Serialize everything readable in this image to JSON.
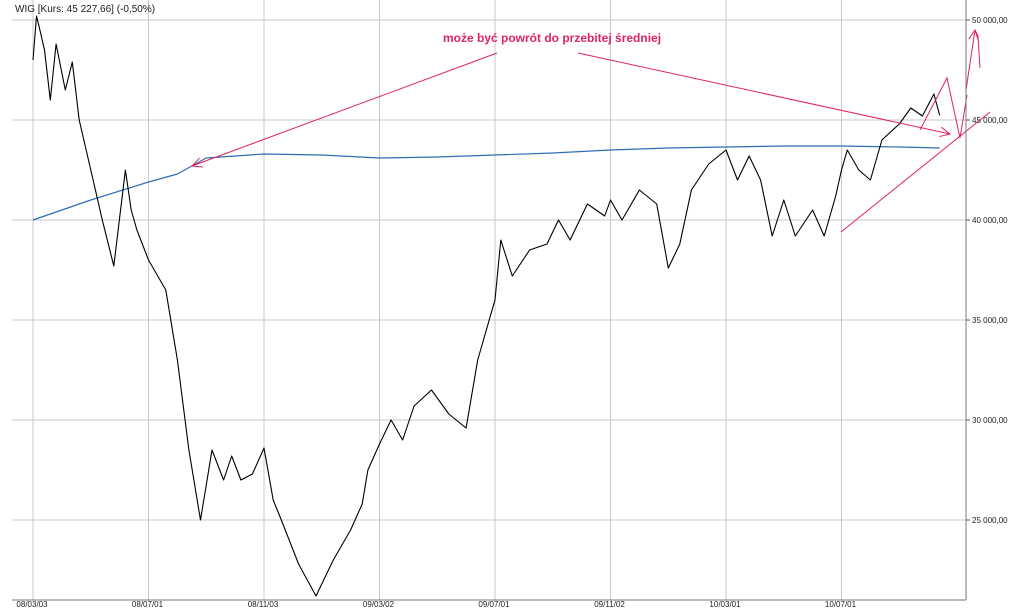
{
  "chart_data": {
    "type": "line",
    "legend": "WIG [Kurs: 45 227,66] (-0,50%)",
    "annotation": "może być powrót do przebitej średniej",
    "ylim": [
      21000,
      51000
    ],
    "y_ticks": [
      {
        "value": 25000,
        "label": "25 000,00"
      },
      {
        "value": 30000,
        "label": "30 000,00"
      },
      {
        "value": 35000,
        "label": "35 000,00"
      },
      {
        "value": 40000,
        "label": "40 000,00"
      },
      {
        "value": 45000,
        "label": "45 000,00"
      },
      {
        "value": 50000,
        "label": "50 000,00"
      }
    ],
    "x_ticks": [
      "08/03/03",
      "08/07/01",
      "08/11/03",
      "09/03/02",
      "09/07/01",
      "09/11/02",
      "10/03/01",
      "10/07/01"
    ],
    "grid": true,
    "series": [
      {
        "name": "WIG",
        "color": "#000000",
        "x": [
          0.0,
          0.03,
          0.06,
          0.1,
          0.15,
          0.2,
          0.28,
          0.34,
          0.4,
          0.5,
          0.6,
          0.7,
          0.8,
          0.85,
          0.9,
          1.0,
          1.15,
          1.25,
          1.35,
          1.45,
          1.55,
          1.65,
          1.72,
          1.8,
          1.9,
          2.0,
          2.08,
          2.15,
          2.3,
          2.45,
          2.6,
          2.75,
          2.85,
          2.9,
          3.0,
          3.1,
          3.2,
          3.3,
          3.45,
          3.6,
          3.75,
          3.85,
          3.95,
          4.0,
          4.05,
          4.15,
          4.3,
          4.45,
          4.55,
          4.65,
          4.8,
          4.95,
          5.0,
          5.1,
          5.25,
          5.4,
          5.5,
          5.6,
          5.7,
          5.85,
          6.0,
          6.1,
          6.2,
          6.3,
          6.4,
          6.5,
          6.6,
          6.75,
          6.85,
          6.95,
          7.0,
          7.05,
          7.15,
          7.25,
          7.35,
          7.5,
          7.6,
          7.7,
          7.8,
          7.85
        ],
        "y": [
          48000,
          50200,
          49500,
          48500,
          46000,
          48800,
          46500,
          47900,
          45000,
          42500,
          40000,
          37700,
          42500,
          40500,
          39500,
          38000,
          36500,
          33000,
          28500,
          25000,
          28500,
          27000,
          28200,
          27000,
          27300,
          28600,
          26000,
          25000,
          22800,
          21200,
          23000,
          24500,
          25800,
          27500,
          28800,
          30000,
          29000,
          30700,
          31500,
          30300,
          29600,
          33000,
          35000,
          36000,
          39000,
          37200,
          38500,
          38800,
          40000,
          39000,
          40800,
          40200,
          41000,
          40000,
          41500,
          40800,
          37600,
          38800,
          41500,
          42800,
          43500,
          42000,
          43200,
          42000,
          39200,
          41000,
          39200,
          40500,
          39200,
          41200,
          42500,
          43500,
          42500,
          42000,
          44000,
          44800,
          45600,
          45200,
          46300,
          45227.66
        ]
      },
      {
        "name": "",
        "color": "#2f6db5",
        "x": [
          0.0,
          0.5,
          1.0,
          1.25,
          1.5,
          2.0,
          2.5,
          3.0,
          3.5,
          4.0,
          4.5,
          5.0,
          5.5,
          6.0,
          6.5,
          7.0,
          7.5,
          7.85
        ],
        "y": [
          40000,
          41000,
          41900,
          42300,
          43100,
          43300,
          43250,
          43100,
          43150,
          43250,
          43350,
          43500,
          43600,
          43650,
          43700,
          43700,
          43650,
          43600
        ]
      }
    ]
  }
}
